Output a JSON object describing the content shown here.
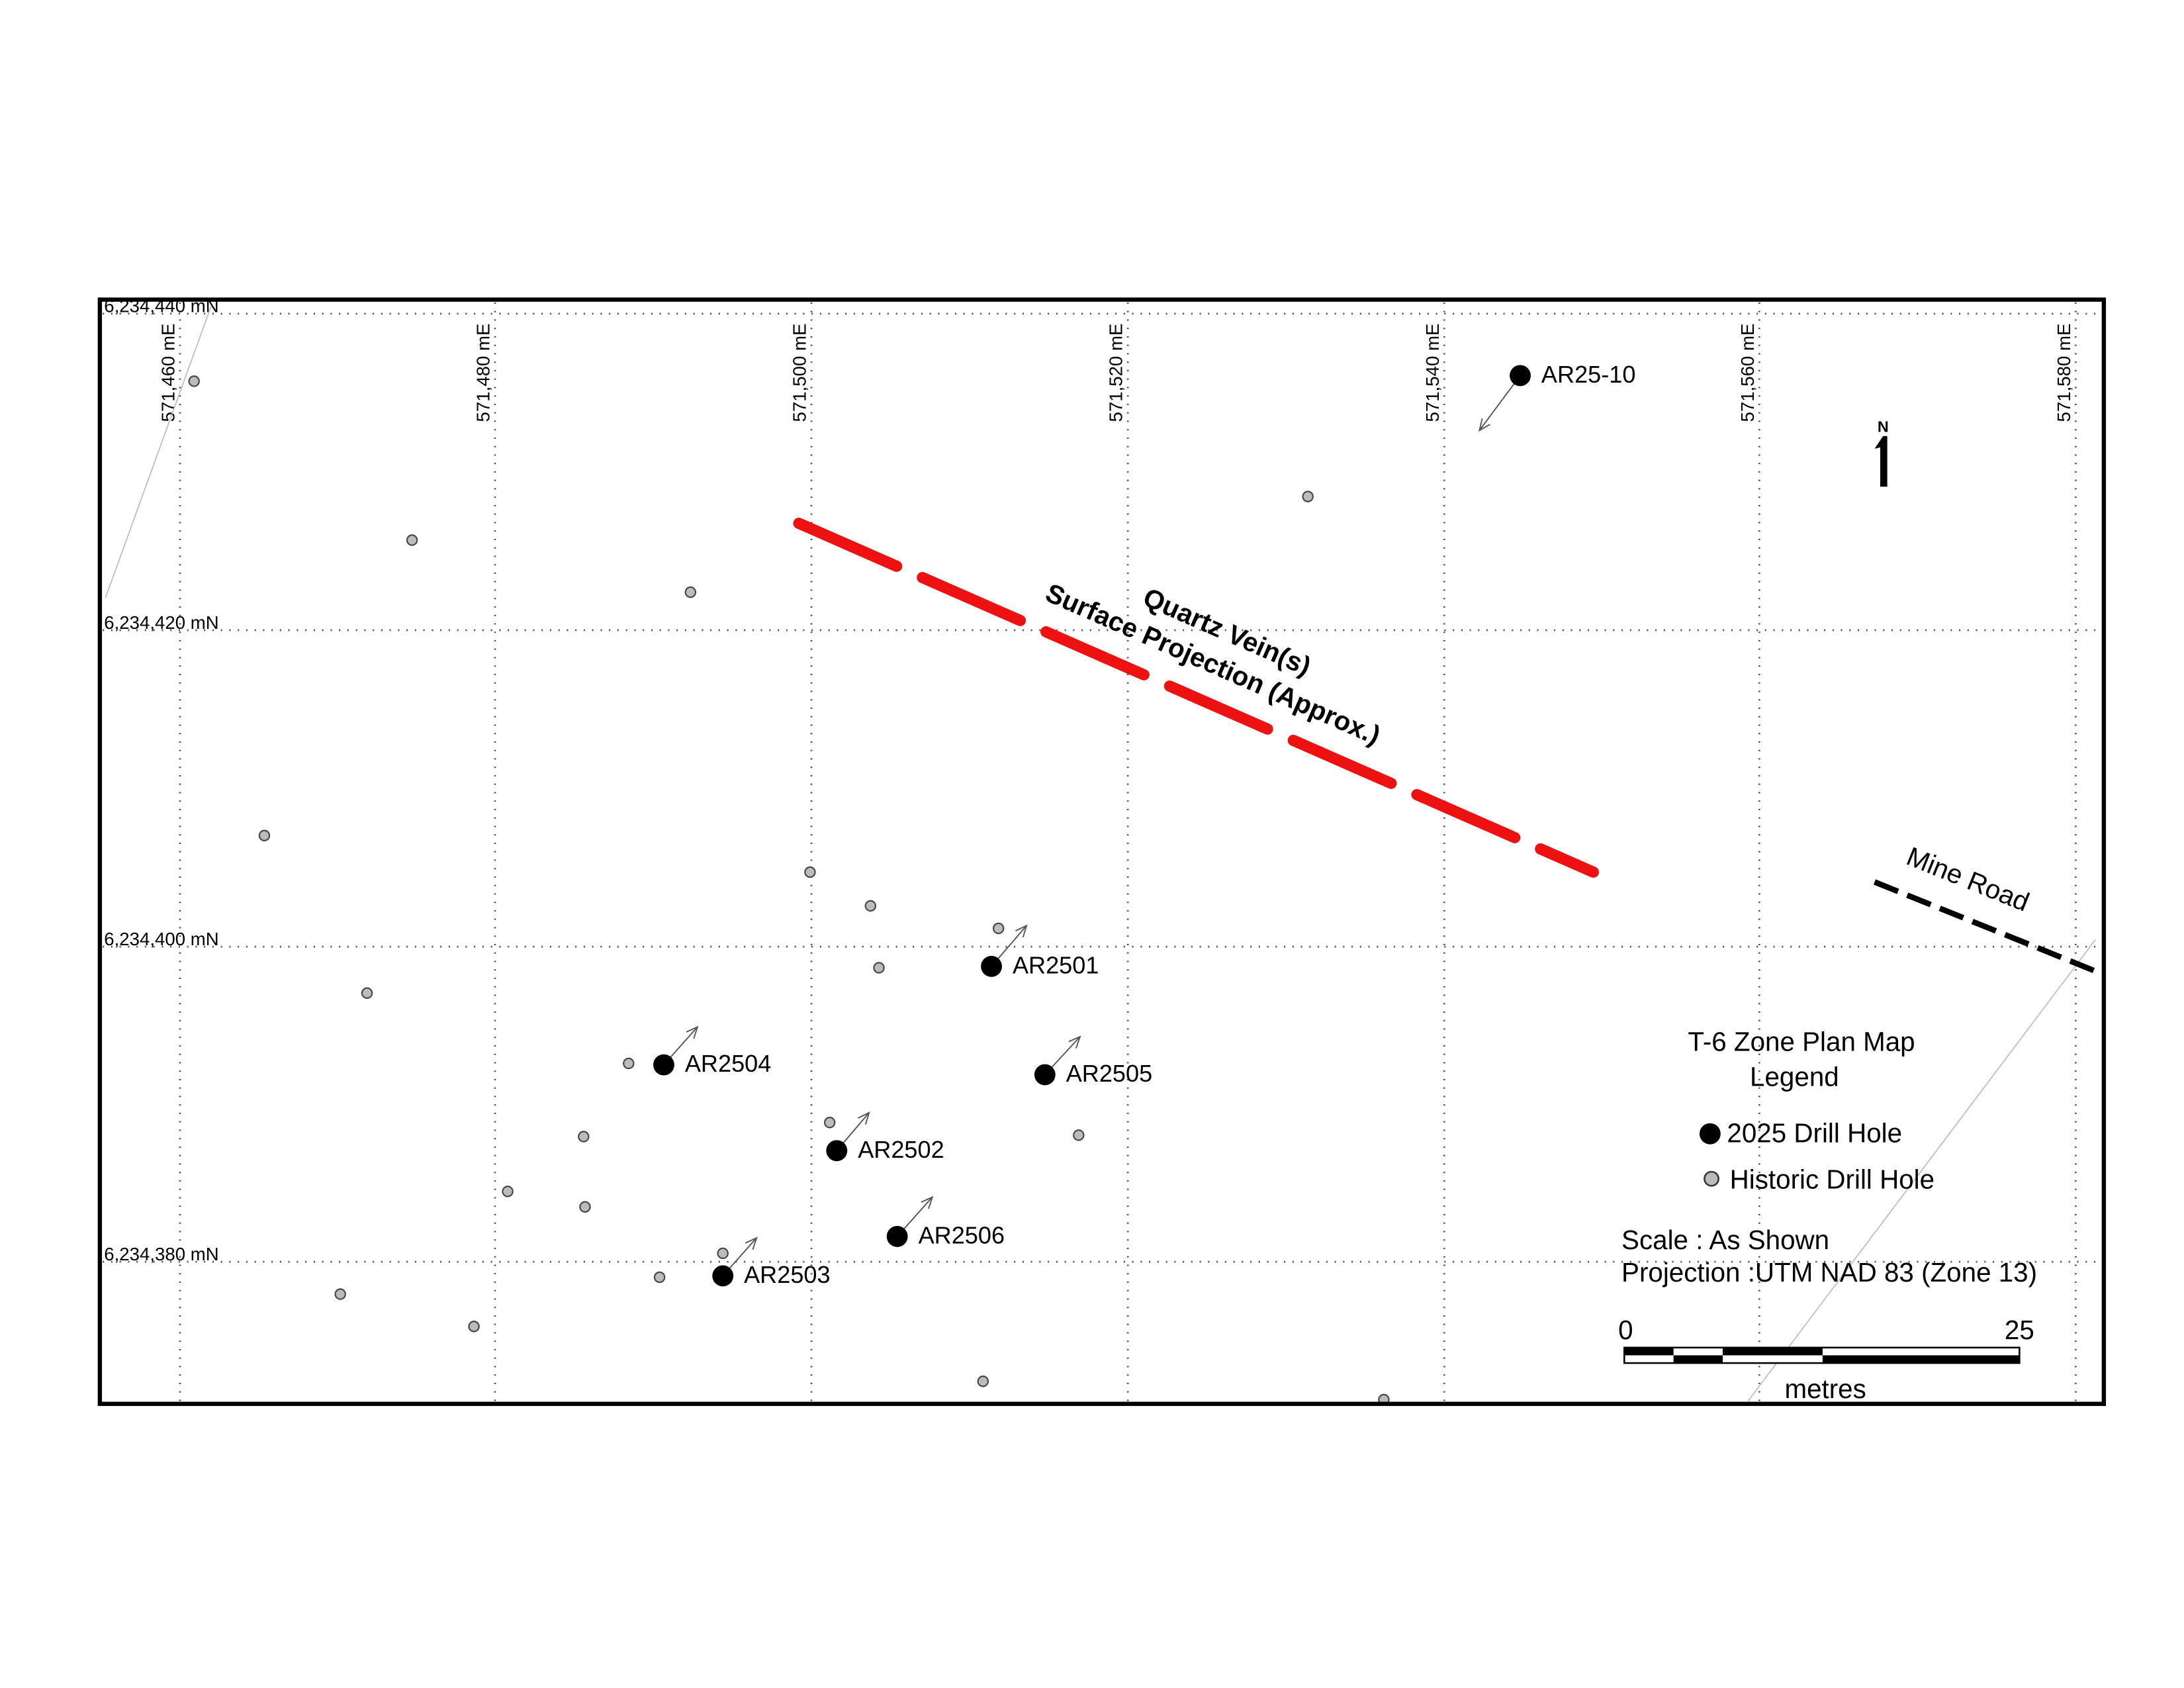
{
  "grid": {
    "eastings": [
      "571,460 mE",
      "571,480 mE",
      "571,500 mE",
      "571,520 mE",
      "571,540 mE",
      "571,560 mE",
      "571,580 mE"
    ],
    "northings": [
      "6,234,440 mN",
      "6,234,420 mN",
      "6,234,400 mN",
      "6,234,380 mN"
    ]
  },
  "drill_holes_2025": [
    "AR25-10",
    "AR2501",
    "AR2504",
    "AR2505",
    "AR2502",
    "AR2506",
    "AR2503"
  ],
  "vein_label": [
    "Quartz Vein(s)",
    "Surface Projection (Approx.)"
  ],
  "road_label": "Mine Road",
  "north": "N",
  "legend": {
    "title": "T-6 Zone Plan Map",
    "heading": "Legend",
    "items": [
      "2025 Drill Hole",
      "Historic Drill Hole"
    ],
    "scale": "Scale : As Shown",
    "projection": "Projection :UTM NAD 83 (Zone 13)",
    "scale_bar": {
      "start": 0,
      "end": 25,
      "unit": "metres"
    }
  }
}
